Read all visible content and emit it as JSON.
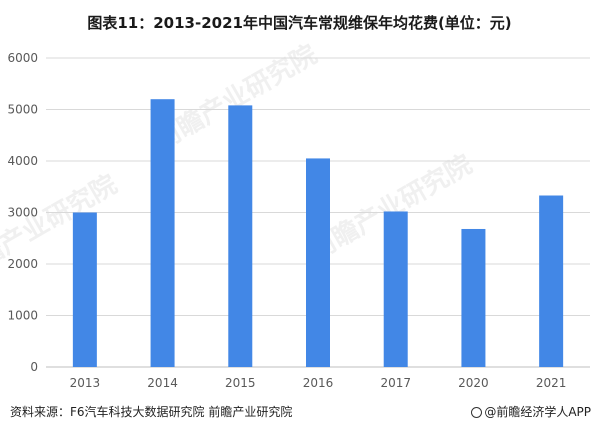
{
  "title": "图表11：2013-2021年中国汽车常规维保年均花费(单位：元)",
  "footer": {
    "source": "资料来源：F6汽车科技大数据研究院 前瞻产业研究院",
    "brand": "@前瞻经济学人APP"
  },
  "watermark": "前瞻产业研究院",
  "colors": {
    "bar": "#4287E6",
    "grid": "#d9d9d9",
    "axis_text": "#595959"
  },
  "chart_data": {
    "type": "bar",
    "categories": [
      "2013",
      "2014",
      "2015",
      "2016",
      "2017",
      "2020",
      "2021"
    ],
    "values": [
      3000,
      5200,
      5080,
      4050,
      3020,
      2680,
      3330
    ],
    "ylim": [
      0,
      6000
    ],
    "yticks": [
      0,
      1000,
      2000,
      3000,
      4000,
      5000,
      6000
    ],
    "grid": true,
    "legend": "none"
  }
}
